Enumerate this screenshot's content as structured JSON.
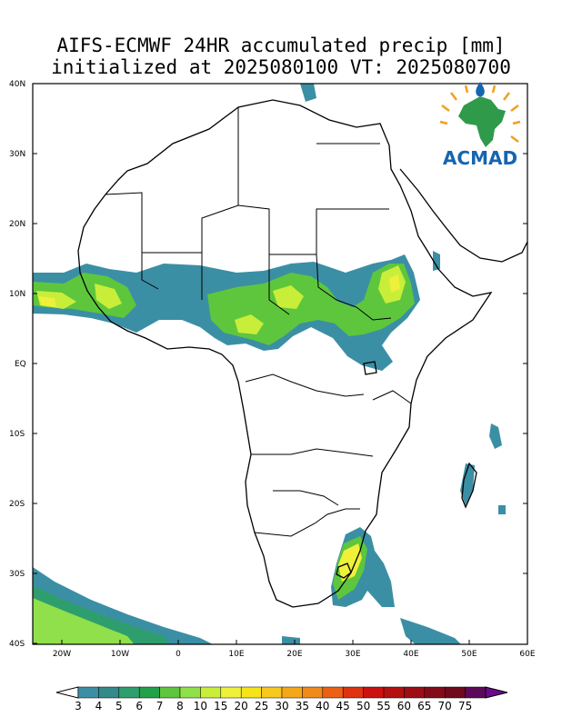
{
  "title": {
    "line1": "AIFS-ECMWF 24HR accumulated precip [mm]",
    "line2": "initialized at 2025080100 VT: 2025080700"
  },
  "map": {
    "lat_labels": [
      "40N",
      "30N",
      "20N",
      "10N",
      "EQ",
      "10S",
      "20S",
      "30S",
      "40S"
    ],
    "lon_labels": [
      "20W",
      "10W",
      "0",
      "10E",
      "20E",
      "30E",
      "40E",
      "50E",
      "60E"
    ],
    "extent": {
      "lon_min": -25,
      "lon_max": 60,
      "lat_min": -40,
      "lat_max": 40
    }
  },
  "logo": {
    "text": "ACMAD",
    "text_color": "#1565b0",
    "icon": "africa-sun-logo-icon"
  },
  "colorbar": {
    "levels": [
      "3",
      "4",
      "5",
      "6",
      "7",
      "8",
      "10",
      "15",
      "20",
      "25",
      "30",
      "35",
      "40",
      "45",
      "50",
      "55",
      "60",
      "65",
      "70",
      "75"
    ],
    "colors": [
      "#3b8fa4",
      "#338a8a",
      "#2f9e6e",
      "#23a04a",
      "#5ec63c",
      "#8fe04a",
      "#c8ee3a",
      "#eef03a",
      "#f7e418",
      "#f7c81c",
      "#f4a818",
      "#f08a1a",
      "#ec6014",
      "#e03210",
      "#cc1010",
      "#b41010",
      "#9c0e14",
      "#840c18",
      "#6e0a1c",
      "#5a0a58"
    ],
    "under_color": "#ffffff",
    "over_color": "#6a0a8a"
  },
  "colors": {
    "background": "#ffffff",
    "coast": "#000000",
    "precip_low": "#3b8fa4",
    "precip_mid": "#5ec63c",
    "precip_high": "#eef03a"
  }
}
